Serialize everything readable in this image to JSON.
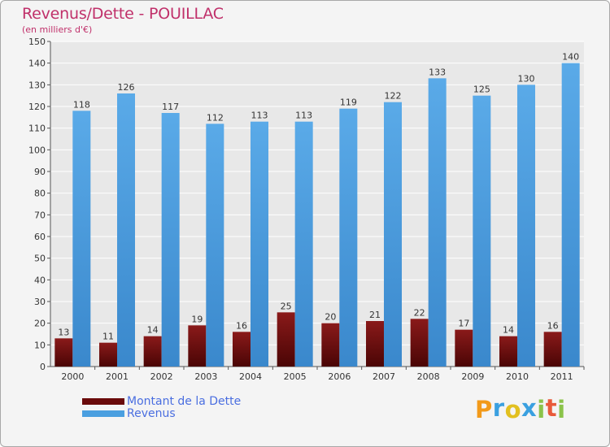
{
  "chart_data": {
    "type": "bar",
    "title": "Revenus/Dette - POUILLAC",
    "subtitle": "(en milliers d'€)",
    "categories": [
      "2000",
      "2001",
      "2002",
      "2003",
      "2004",
      "2005",
      "2006",
      "2007",
      "2008",
      "2009",
      "2010",
      "2011"
    ],
    "series": [
      {
        "name": "Montant de la Dette",
        "color": "#7a1010",
        "values": [
          13,
          11,
          14,
          19,
          16,
          25,
          20,
          21,
          22,
          17,
          14,
          16
        ]
      },
      {
        "name": "Revenus",
        "color": "#4a9fe0",
        "values": [
          118,
          126,
          117,
          112,
          113,
          113,
          119,
          122,
          133,
          125,
          130,
          140
        ]
      }
    ],
    "ylim": [
      0,
      150
    ],
    "yticks": [
      0,
      10,
      20,
      30,
      40,
      50,
      60,
      70,
      80,
      90,
      100,
      110,
      120,
      130,
      140,
      150
    ],
    "grid": true,
    "legend": "bottom-left"
  },
  "legend": {
    "items": [
      {
        "label": "Montant de la Dette",
        "color": "#6a0a0a"
      },
      {
        "label": "Revenus",
        "color": "#4a9fe0"
      }
    ]
  },
  "logo": {
    "letters": [
      "P",
      "r",
      "o",
      "x",
      "i",
      "t",
      "i"
    ],
    "colors": [
      "#f29a1a",
      "#3aa0e0",
      "#e2c020",
      "#3aa0e0",
      "#8bc34a",
      "#e85a3a",
      "#8bc34a"
    ]
  },
  "colors": {
    "title": "#c0306a",
    "axis": "#555555",
    "grid": "#ffffff",
    "plot_background": "#e8e8e8",
    "label_text": "#333333"
  }
}
